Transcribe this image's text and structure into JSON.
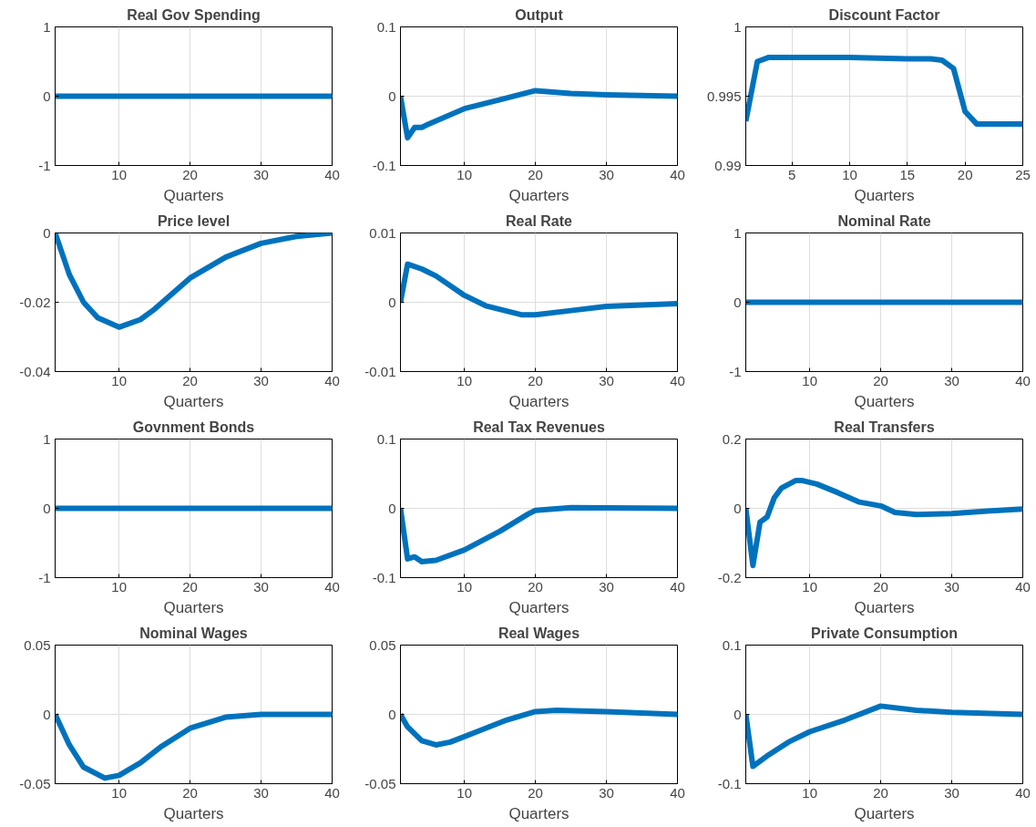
{
  "chart_data": [
    {
      "type": "line",
      "title": "Real Gov Spending",
      "xlabel": "Quarters",
      "x": [
        1,
        40
      ],
      "values": [
        0,
        0
      ],
      "color": "#0072bd",
      "xlim": [
        1,
        40
      ],
      "xticks": [
        10,
        20,
        30,
        40
      ],
      "ylim": [
        -1,
        1
      ],
      "yticks": [
        -1,
        0,
        1
      ],
      "grid": true
    },
    {
      "type": "line",
      "title": "Output",
      "xlabel": "Quarters",
      "x": [
        1,
        2,
        3,
        4,
        5,
        10,
        15,
        20,
        25,
        30,
        40
      ],
      "values": [
        0,
        -0.06,
        -0.045,
        -0.045,
        -0.04,
        -0.018,
        -0.005,
        0.008,
        0.004,
        0.002,
        0
      ],
      "color": "#0072bd",
      "xlim": [
        1,
        40
      ],
      "xticks": [
        10,
        20,
        30,
        40
      ],
      "ylim": [
        -0.1,
        0.1
      ],
      "yticks": [
        -0.1,
        0,
        0.1
      ],
      "grid": true
    },
    {
      "type": "line",
      "title": "Discount Factor",
      "xlabel": "Quarters",
      "x": [
        1,
        2,
        3,
        10,
        15,
        17,
        18,
        19,
        20,
        21,
        25
      ],
      "values": [
        0.9932,
        0.9975,
        0.9978,
        0.9978,
        0.9977,
        0.9977,
        0.9976,
        0.997,
        0.9939,
        0.993,
        0.993
      ],
      "color": "#0072bd",
      "xlim": [
        1,
        25
      ],
      "xticks": [
        5,
        10,
        15,
        20,
        25
      ],
      "ylim": [
        0.99,
        1
      ],
      "yticks": [
        0.99,
        0.995,
        1
      ],
      "grid": true
    },
    {
      "type": "line",
      "title": "Price level",
      "xlabel": "Quarters",
      "x": [
        1,
        3,
        5,
        7,
        10,
        13,
        15,
        20,
        25,
        30,
        35,
        40
      ],
      "values": [
        0,
        -0.012,
        -0.02,
        -0.0245,
        -0.0272,
        -0.025,
        -0.022,
        -0.013,
        -0.007,
        -0.003,
        -0.001,
        0
      ],
      "color": "#0072bd",
      "xlim": [
        1,
        40
      ],
      "xticks": [
        10,
        20,
        30,
        40
      ],
      "ylim": [
        -0.04,
        0
      ],
      "yticks": [
        -0.04,
        -0.02,
        0
      ],
      "grid": true
    },
    {
      "type": "line",
      "title": "Real Rate",
      "xlabel": "Quarters",
      "x": [
        1,
        2,
        4,
        6,
        10,
        13,
        18,
        20,
        25,
        30,
        40
      ],
      "values": [
        0,
        0.0055,
        0.0048,
        0.0038,
        0.001,
        -0.0005,
        -0.0018,
        -0.0018,
        -0.0012,
        -0.0006,
        -0.0002
      ],
      "color": "#0072bd",
      "xlim": [
        1,
        40
      ],
      "xticks": [
        10,
        20,
        30,
        40
      ],
      "ylim": [
        -0.01,
        0.01
      ],
      "yticks": [
        -0.01,
        0,
        0.01
      ],
      "grid": true
    },
    {
      "type": "line",
      "title": "Nominal Rate",
      "xlabel": "Quarters",
      "x": [
        1,
        40
      ],
      "values": [
        0,
        0
      ],
      "color": "#0072bd",
      "xlim": [
        1,
        40
      ],
      "xticks": [
        10,
        20,
        30,
        40
      ],
      "ylim": [
        -1,
        1
      ],
      "yticks": [
        -1,
        0,
        1
      ],
      "grid": true
    },
    {
      "type": "line",
      "title": "Govnment Bonds",
      "xlabel": "Quarters",
      "x": [
        1,
        40
      ],
      "values": [
        0,
        0
      ],
      "color": "#0072bd",
      "xlim": [
        1,
        40
      ],
      "xticks": [
        10,
        20,
        30,
        40
      ],
      "ylim": [
        -1,
        1
      ],
      "yticks": [
        -1,
        0,
        1
      ],
      "grid": true
    },
    {
      "type": "line",
      "title": "Real Tax Revenues",
      "xlabel": "Quarters",
      "x": [
        1,
        2,
        3,
        4,
        6,
        10,
        15,
        19,
        20,
        25,
        40
      ],
      "values": [
        0,
        -0.073,
        -0.07,
        -0.077,
        -0.075,
        -0.06,
        -0.033,
        -0.008,
        -0.003,
        0.001,
        0
      ],
      "color": "#0072bd",
      "xlim": [
        1,
        40
      ],
      "xticks": [
        10,
        20,
        30,
        40
      ],
      "ylim": [
        -0.1,
        0.1
      ],
      "yticks": [
        -0.1,
        0,
        0.1
      ],
      "grid": true
    },
    {
      "type": "line",
      "title": "Real Transfers",
      "xlabel": "Quarters",
      "x": [
        1,
        2,
        3,
        4,
        5,
        6,
        8,
        9,
        11,
        14,
        17,
        20,
        22,
        25,
        30,
        35,
        40
      ],
      "values": [
        0,
        -0.165,
        -0.04,
        -0.025,
        0.03,
        0.058,
        0.08,
        0.08,
        0.07,
        0.045,
        0.018,
        0.007,
        -0.012,
        -0.018,
        -0.015,
        -0.008,
        -0.002
      ],
      "color": "#0072bd",
      "xlim": [
        1,
        40
      ],
      "xticks": [
        10,
        20,
        30,
        40
      ],
      "ylim": [
        -0.2,
        0.2
      ],
      "yticks": [
        -0.2,
        0,
        0.2
      ],
      "grid": true
    },
    {
      "type": "line",
      "title": "Nominal Wages",
      "xlabel": "Quarters",
      "x": [
        1,
        3,
        5,
        8,
        10,
        13,
        16,
        20,
        25,
        30,
        40
      ],
      "values": [
        0,
        -0.022,
        -0.038,
        -0.046,
        -0.044,
        -0.035,
        -0.023,
        -0.01,
        -0.002,
        0,
        0
      ],
      "color": "#0072bd",
      "xlim": [
        1,
        40
      ],
      "xticks": [
        10,
        20,
        30,
        40
      ],
      "ylim": [
        -0.05,
        0.05
      ],
      "yticks": [
        -0.05,
        0,
        0.05
      ],
      "grid": true
    },
    {
      "type": "line",
      "title": "Real Wages",
      "xlabel": "Quarters",
      "x": [
        1,
        2,
        4,
        6,
        8,
        12,
        16,
        20,
        23,
        30,
        40
      ],
      "values": [
        0,
        -0.009,
        -0.019,
        -0.022,
        -0.02,
        -0.012,
        -0.004,
        0.002,
        0.003,
        0.002,
        0
      ],
      "color": "#0072bd",
      "xlim": [
        1,
        40
      ],
      "xticks": [
        10,
        20,
        30,
        40
      ],
      "ylim": [
        -0.05,
        0.05
      ],
      "yticks": [
        -0.05,
        0,
        0.05
      ],
      "grid": true
    },
    {
      "type": "line",
      "title": "Private Consumption",
      "xlabel": "Quarters",
      "x": [
        1,
        2,
        4,
        7,
        10,
        15,
        20,
        25,
        30,
        40
      ],
      "values": [
        0,
        -0.075,
        -0.06,
        -0.04,
        -0.025,
        -0.008,
        0.012,
        0.006,
        0.003,
        0
      ],
      "color": "#0072bd",
      "xlim": [
        1,
        40
      ],
      "xticks": [
        10,
        20,
        30,
        40
      ],
      "ylim": [
        -0.1,
        0.1
      ],
      "yticks": [
        -0.1,
        0,
        0.1
      ],
      "grid": true
    }
  ]
}
